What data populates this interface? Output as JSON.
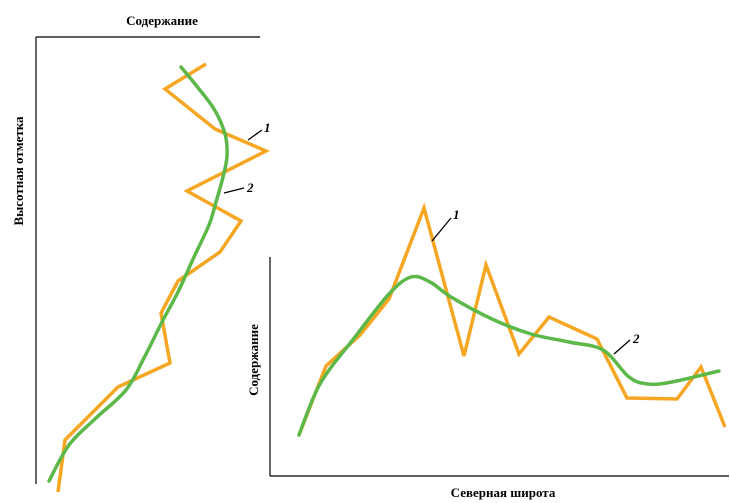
{
  "colors": {
    "series_1": "#f5a623",
    "series_2": "#5cb848",
    "axes": "#000000"
  },
  "chart_data": [
    {
      "type": "line",
      "orientation": "vertical-profile",
      "xlabel": "Содержание",
      "ylabel": "Высотная отметка",
      "x_axis_position": "top",
      "grid": false,
      "series": [
        {
          "name": "1",
          "points": [
            [
              206,
              64
            ],
            [
              165,
              89
            ],
            [
              215,
              129
            ],
            [
              266,
              151
            ],
            [
              187,
              191
            ],
            [
              241,
              221
            ],
            [
              220,
              252
            ],
            [
              178,
              281
            ],
            [
              161,
              313
            ],
            [
              170,
              363
            ],
            [
              118,
              387
            ],
            [
              65,
              440
            ],
            [
              58,
              492
            ]
          ]
        },
        {
          "name": "2",
          "points": [
            [
              181,
              67
            ],
            [
              195,
              84
            ],
            [
              214,
              109
            ],
            [
              225,
              134
            ],
            [
              227,
              156
            ],
            [
              223,
              177
            ],
            [
              216,
              202
            ],
            [
              209,
              225
            ],
            [
              194,
              257
            ],
            [
              178,
              292
            ],
            [
              162,
              322
            ],
            [
              145,
              356
            ],
            [
              126,
              390
            ],
            [
              96,
              418
            ],
            [
              69,
              445
            ],
            [
              49,
              481
            ]
          ]
        }
      ]
    },
    {
      "type": "line",
      "xlabel": "Северная широта",
      "ylabel": "Содержание",
      "grid": false,
      "series": [
        {
          "name": "1",
          "points": [
            [
              299,
              435
            ],
            [
              326,
              366
            ],
            [
              360,
              335
            ],
            [
              389,
              299
            ],
            [
              424,
              208
            ],
            [
              464,
              356
            ],
            [
              486,
              265
            ],
            [
              519,
              354
            ],
            [
              549,
              317
            ],
            [
              597,
              339
            ],
            [
              627,
              398
            ],
            [
              677,
              399
            ],
            [
              701,
              367
            ],
            [
              725,
              427
            ]
          ]
        },
        {
          "name": "2",
          "points": [
            [
              299,
              435
            ],
            [
              320,
              384
            ],
            [
              355,
              337
            ],
            [
              389,
              294
            ],
            [
              411,
              277
            ],
            [
              430,
              282
            ],
            [
              451,
              297
            ],
            [
              492,
              319
            ],
            [
              531,
              334
            ],
            [
              569,
              342
            ],
            [
              603,
              350
            ],
            [
              629,
              377
            ],
            [
              648,
              384
            ],
            [
              672,
              382
            ],
            [
              719,
              371
            ]
          ]
        }
      ]
    }
  ],
  "annotations": {
    "left_label_1": "1",
    "left_label_2": "2",
    "right_label_1": "1",
    "right_label_2": "2"
  }
}
